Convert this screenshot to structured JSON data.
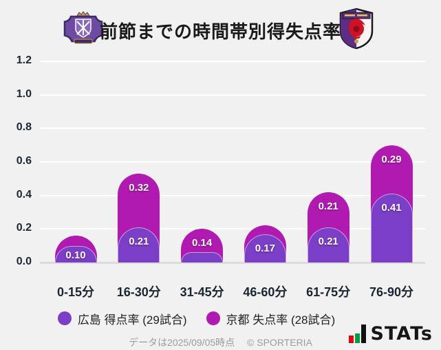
{
  "header": {
    "title": "前節までの時間帯別得失点率",
    "left_logo": "サンフレッチェ広島エンブレム",
    "right_logo": "京都サンガエンブレム"
  },
  "colors": {
    "hiroshima_purple": "#7b3ec6",
    "kyoto_magenta": "#b01ab0",
    "background": "#f1f1f1",
    "gridline": "#ffffff",
    "baseline": "#dcdcdc",
    "axis_text": "#1c2633",
    "value_text": "#ffffff",
    "footer_text": "#9c9c9c"
  },
  "chart_data": {
    "type": "bar",
    "stacked": true,
    "title": "前節までの時間帯別得失点率",
    "categories": [
      "0-15分",
      "16-30分",
      "31-45分",
      "46-60分",
      "61-75分",
      "76-90分"
    ],
    "series": [
      {
        "name": "広島 得点率 (29試合)",
        "color": "#7b3ec6",
        "values": [
          0.1,
          0.21,
          0.06,
          0.17,
          0.21,
          0.41
        ],
        "labels": [
          "0.10",
          "0.21",
          "",
          "0.17",
          "0.21",
          "0.41"
        ]
      },
      {
        "name": "京都 失点率 (28試合)",
        "color": "#b01ab0",
        "values": [
          0.06,
          0.32,
          0.14,
          0.05,
          0.21,
          0.29
        ],
        "labels": [
          "",
          "0.32",
          "0.14",
          "",
          "0.21",
          "0.29"
        ]
      }
    ],
    "ylim": [
      0,
      1.2
    ],
    "yticks": [
      1.2,
      1.0,
      0.8,
      0.6,
      0.4,
      0.2,
      0.0
    ],
    "grid": true,
    "legend_position": "bottom"
  },
  "legend": {
    "items": [
      {
        "label": "広島 得点率 (29試合)",
        "color": "#7b3ec6"
      },
      {
        "label": "京都 失点率 (28試合)",
        "color": "#b01ab0"
      }
    ]
  },
  "footer": {
    "data_note": "データは2025/09/05時点",
    "copyright": "© SPORTERIA",
    "brand": "STATs"
  }
}
